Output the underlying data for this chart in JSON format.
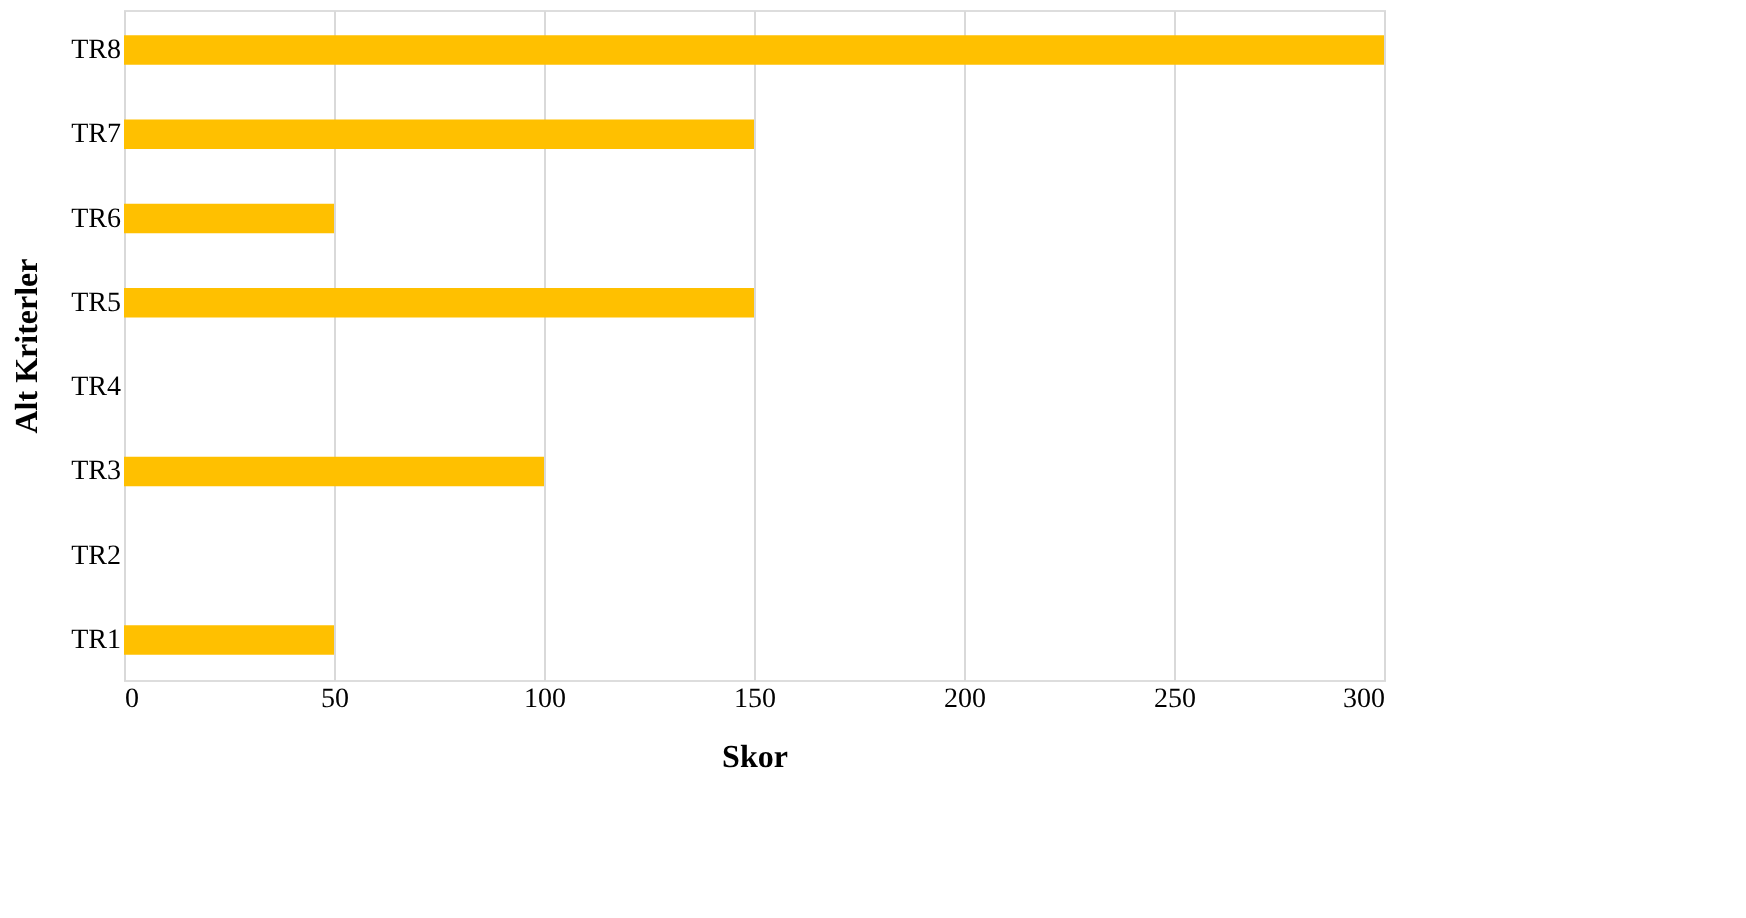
{
  "chart_data": {
    "type": "bar",
    "orientation": "horizontal",
    "xlabel": "Skor",
    "ylabel": "Alt Kriterler",
    "categories": [
      "TR8",
      "TR7",
      "TR6",
      "TR5",
      "TR4",
      "TR3",
      "TR2",
      "TR1"
    ],
    "values": [
      300,
      150,
      50,
      150,
      0,
      100,
      0,
      50
    ],
    "color": "#ffc000",
    "xlim": [
      0,
      300
    ],
    "xticks": [
      0,
      50,
      100,
      150,
      200,
      250,
      300
    ],
    "grid": "x"
  }
}
